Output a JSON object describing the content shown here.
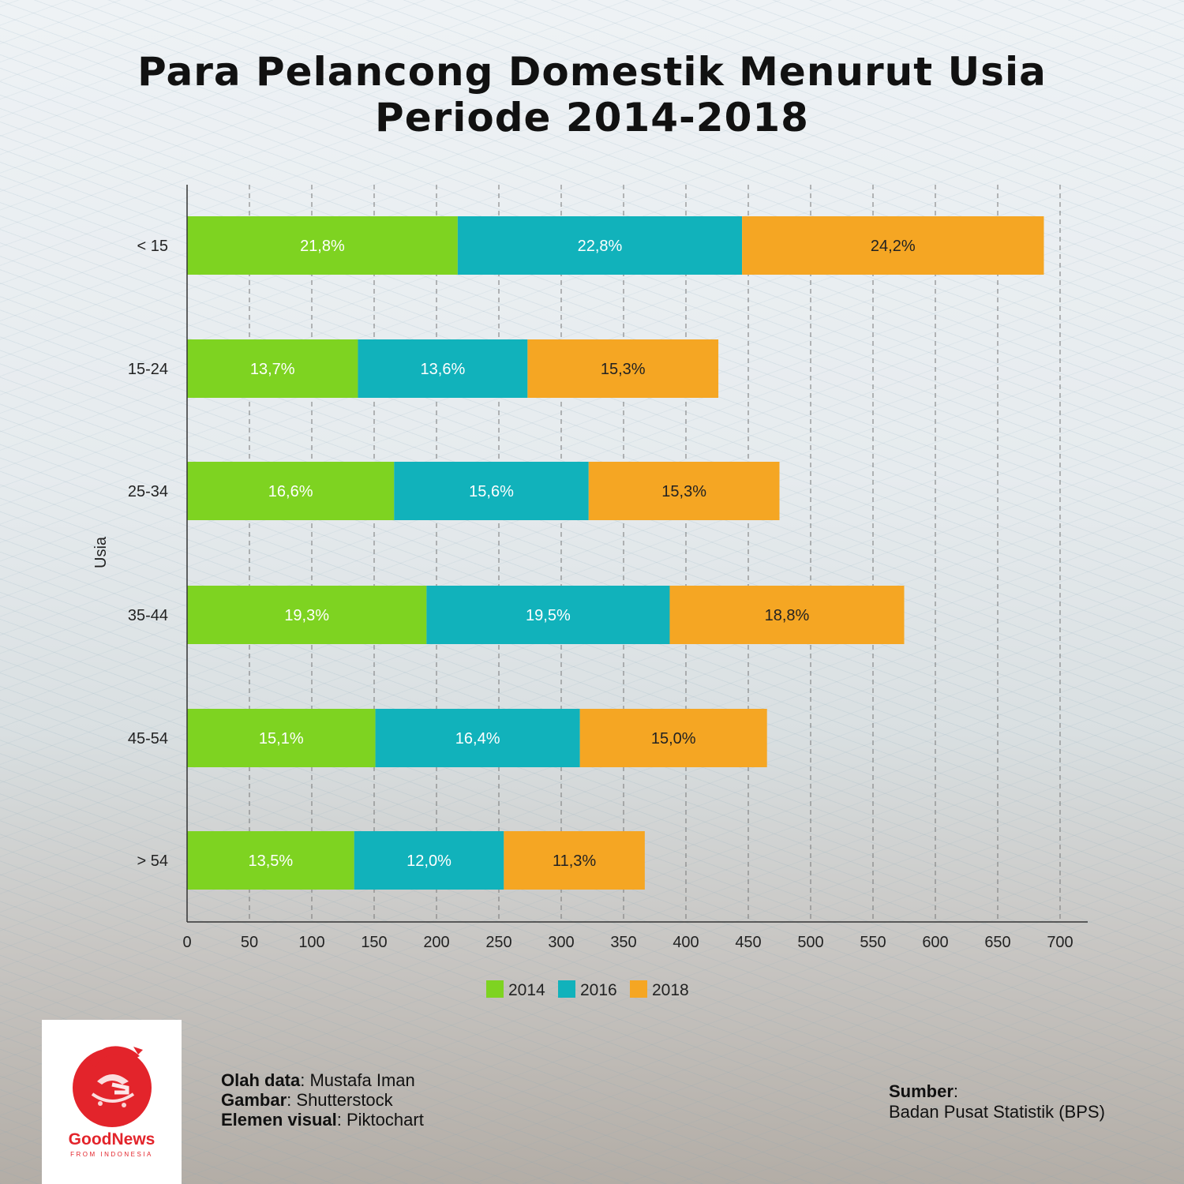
{
  "title_lines": [
    "Para Pelancong Domestik Menurut Usia",
    "Periode 2014-2018"
  ],
  "chart_data": {
    "type": "bar",
    "orientation": "horizontal",
    "stacked": true,
    "categories": [
      "< 15",
      "15-24",
      "25-34",
      "35-44",
      "45-54",
      "> 54"
    ],
    "series": [
      {
        "name": "2014",
        "values": [
          217,
          137,
          166,
          192,
          151,
          134
        ],
        "labels": [
          "21,8%",
          "13,7%",
          "16,6%",
          "19,3%",
          "15,1%",
          "13,5%"
        ],
        "color": "#7ed321",
        "label_color": "#ffffff"
      },
      {
        "name": "2016",
        "values": [
          228,
          136,
          156,
          195,
          164,
          120
        ],
        "labels": [
          "22,8%",
          "13,6%",
          "15,6%",
          "19,5%",
          "16,4%",
          "12,0%"
        ],
        "color": "#11b2bb",
        "label_color": "#ffffff"
      },
      {
        "name": "2018",
        "values": [
          242,
          153,
          153,
          188,
          150,
          113
        ],
        "labels": [
          "24,2%",
          "15,3%",
          "15,3%",
          "18,8%",
          "15,0%",
          "11,3%"
        ],
        "color": "#f5a623",
        "label_color": "#222222"
      }
    ],
    "xlim": [
      0,
      720
    ],
    "xticks": [
      0,
      50,
      100,
      150,
      200,
      250,
      300,
      350,
      400,
      450,
      500,
      550,
      600,
      650,
      700
    ],
    "ylabel": "Usia",
    "xlabel": "",
    "grid": "vertical dashed",
    "legend_position": "bottom"
  },
  "logo": {
    "name": "GoodNews",
    "tagline": "FROM INDONESIA",
    "color": "#e3242b"
  },
  "credits": [
    {
      "label": "Olah data",
      "value": "Mustafa Iman"
    },
    {
      "label": "Gambar",
      "value": "Shutterstock"
    },
    {
      "label": "Elemen visual",
      "value": "Piktochart"
    }
  ],
  "source": {
    "label": "Sumber",
    "value": "Badan Pusat Statistik (BPS)"
  }
}
